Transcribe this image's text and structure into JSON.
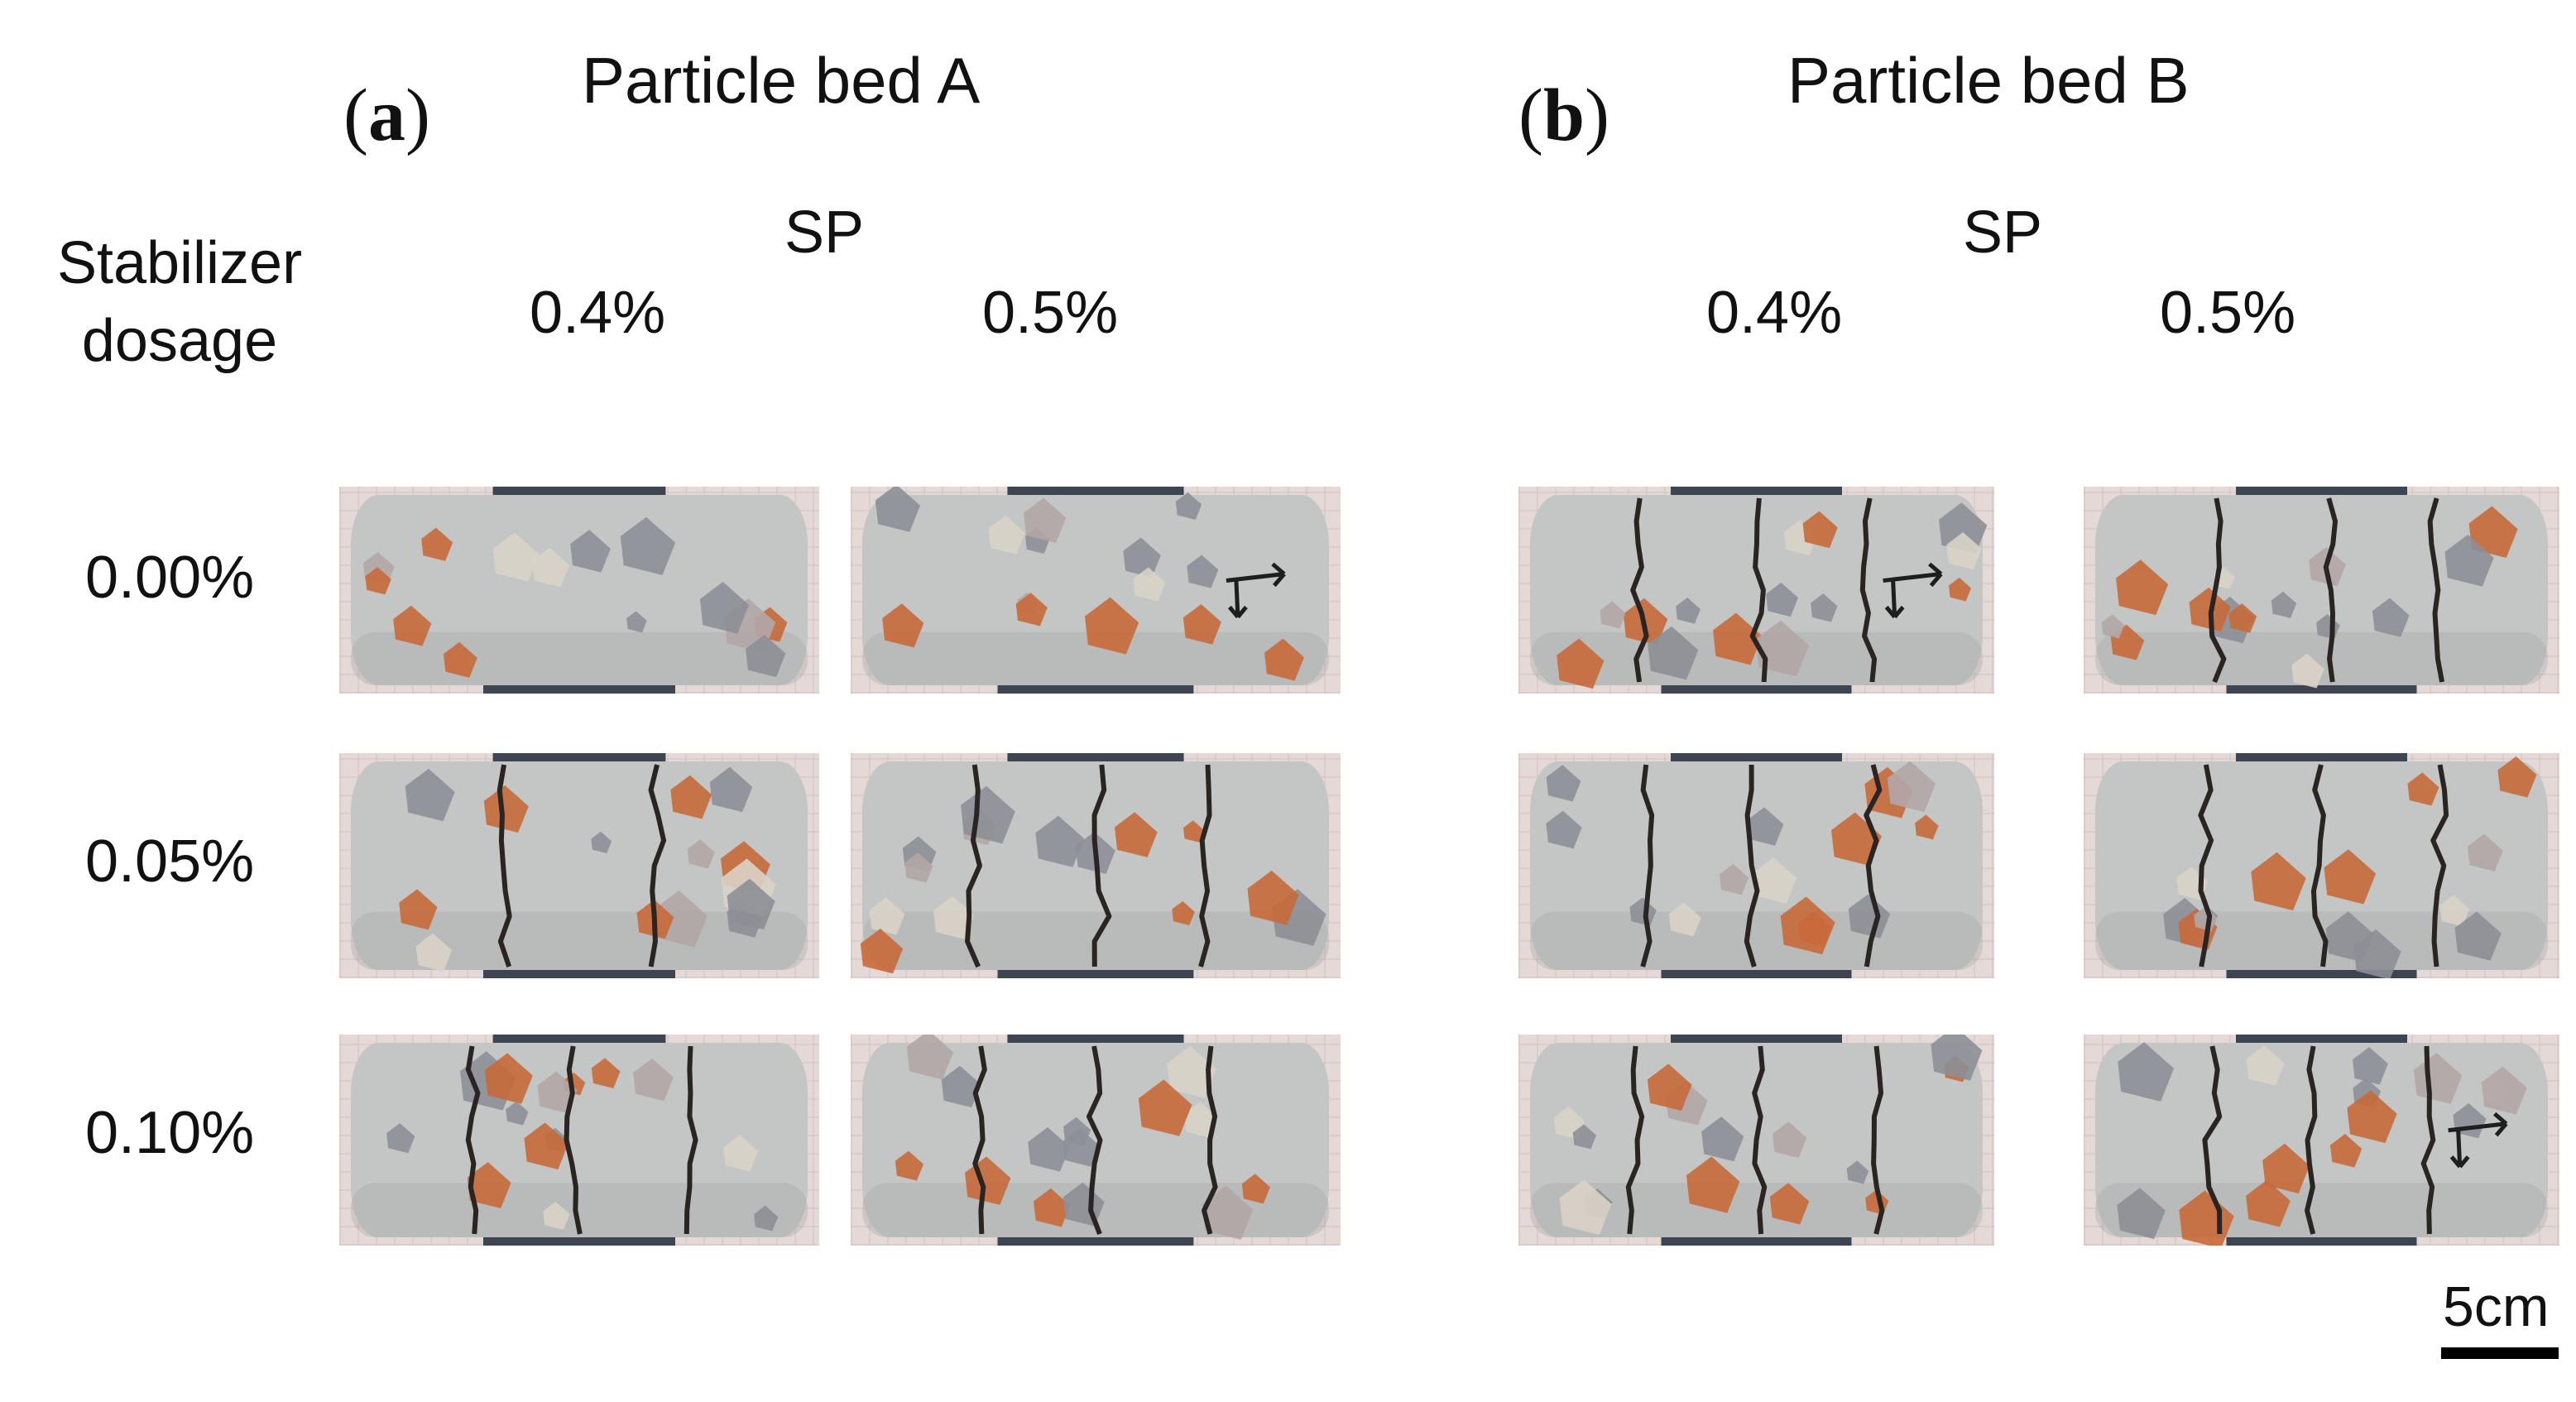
{
  "panels": [
    {
      "letter": "a",
      "title": "Particle bed A",
      "group_label": "SP",
      "columns": [
        "0.4%",
        "0.5%"
      ]
    },
    {
      "letter": "b",
      "title": "Particle bed B",
      "group_label": "SP",
      "columns": [
        "0.4%",
        "0.5%"
      ]
    }
  ],
  "row_header": {
    "line1": "Stabilizer",
    "line2": "dosage"
  },
  "rows": [
    "0.00%",
    "0.05%",
    "0.10%"
  ],
  "scale_bar": {
    "label": "5cm"
  },
  "colors": {
    "concrete": "#c3c6c5",
    "concrete_shade": "#a3a7a6",
    "crack": "#2a2522",
    "brick": "#c8693a",
    "stone": "#8d8f96",
    "clamp": "#3d4452",
    "background_grid": "#e4d9d6"
  },
  "specimens": [
    {
      "panel": 0,
      "col": 0,
      "row": 0,
      "cracks": 0,
      "arrow": false
    },
    {
      "panel": 0,
      "col": 1,
      "row": 0,
      "cracks": 0,
      "arrow": true
    },
    {
      "panel": 0,
      "col": 0,
      "row": 1,
      "cracks": 2,
      "arrow": false
    },
    {
      "panel": 0,
      "col": 1,
      "row": 1,
      "cracks": 3,
      "arrow": false
    },
    {
      "panel": 0,
      "col": 0,
      "row": 2,
      "cracks": 3,
      "arrow": false
    },
    {
      "panel": 0,
      "col": 1,
      "row": 2,
      "cracks": 3,
      "arrow": false
    },
    {
      "panel": 1,
      "col": 0,
      "row": 0,
      "cracks": 3,
      "arrow": true
    },
    {
      "panel": 1,
      "col": 1,
      "row": 0,
      "cracks": 3,
      "arrow": false
    },
    {
      "panel": 1,
      "col": 0,
      "row": 1,
      "cracks": 3,
      "arrow": false
    },
    {
      "panel": 1,
      "col": 1,
      "row": 1,
      "cracks": 3,
      "arrow": false
    },
    {
      "panel": 1,
      "col": 0,
      "row": 2,
      "cracks": 3,
      "arrow": false
    },
    {
      "panel": 1,
      "col": 1,
      "row": 2,
      "cracks": 3,
      "arrow": true
    }
  ]
}
